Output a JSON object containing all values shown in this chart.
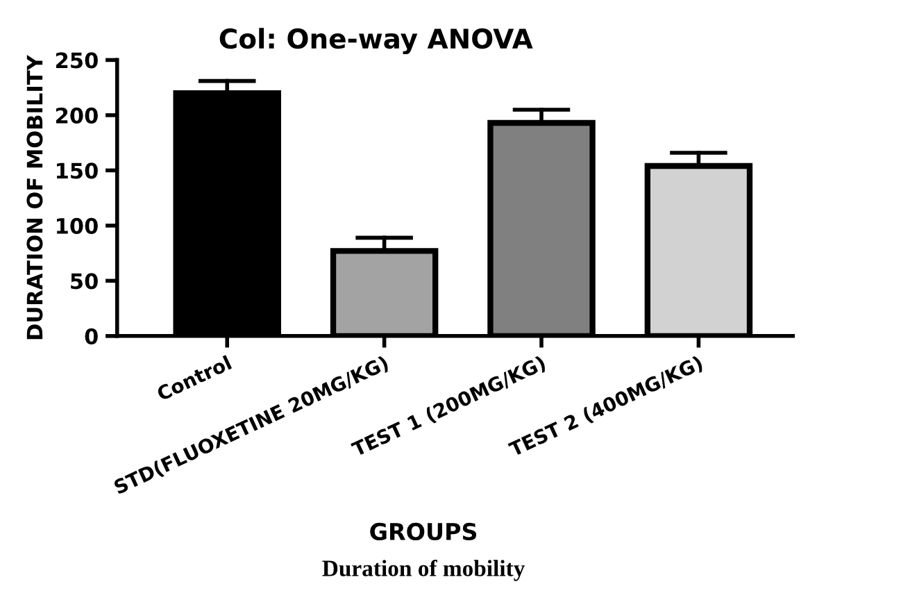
{
  "chart_data": {
    "type": "bar",
    "title": "Col: One-way ANOVA",
    "xlabel": "GROUPS",
    "ylabel": "DURATION OF MOBILITY",
    "categories": [
      "Control",
      "STD(FLUOXETINE 20MG/KG)",
      "TEST 1 (200MG/KG)",
      "TEST 2 (400MG/KG)"
    ],
    "values": [
      220,
      77,
      193,
      154
    ],
    "errors": [
      11,
      12,
      12,
      12
    ],
    "colors": [
      "#000000",
      "#a3a3a3",
      "#808080",
      "#d2d2d2"
    ],
    "ylim": [
      0,
      250
    ],
    "yticks": [
      0,
      50,
      100,
      150,
      200,
      250
    ],
    "grid": false,
    "annotations": [
      "Duration of mobility"
    ]
  }
}
